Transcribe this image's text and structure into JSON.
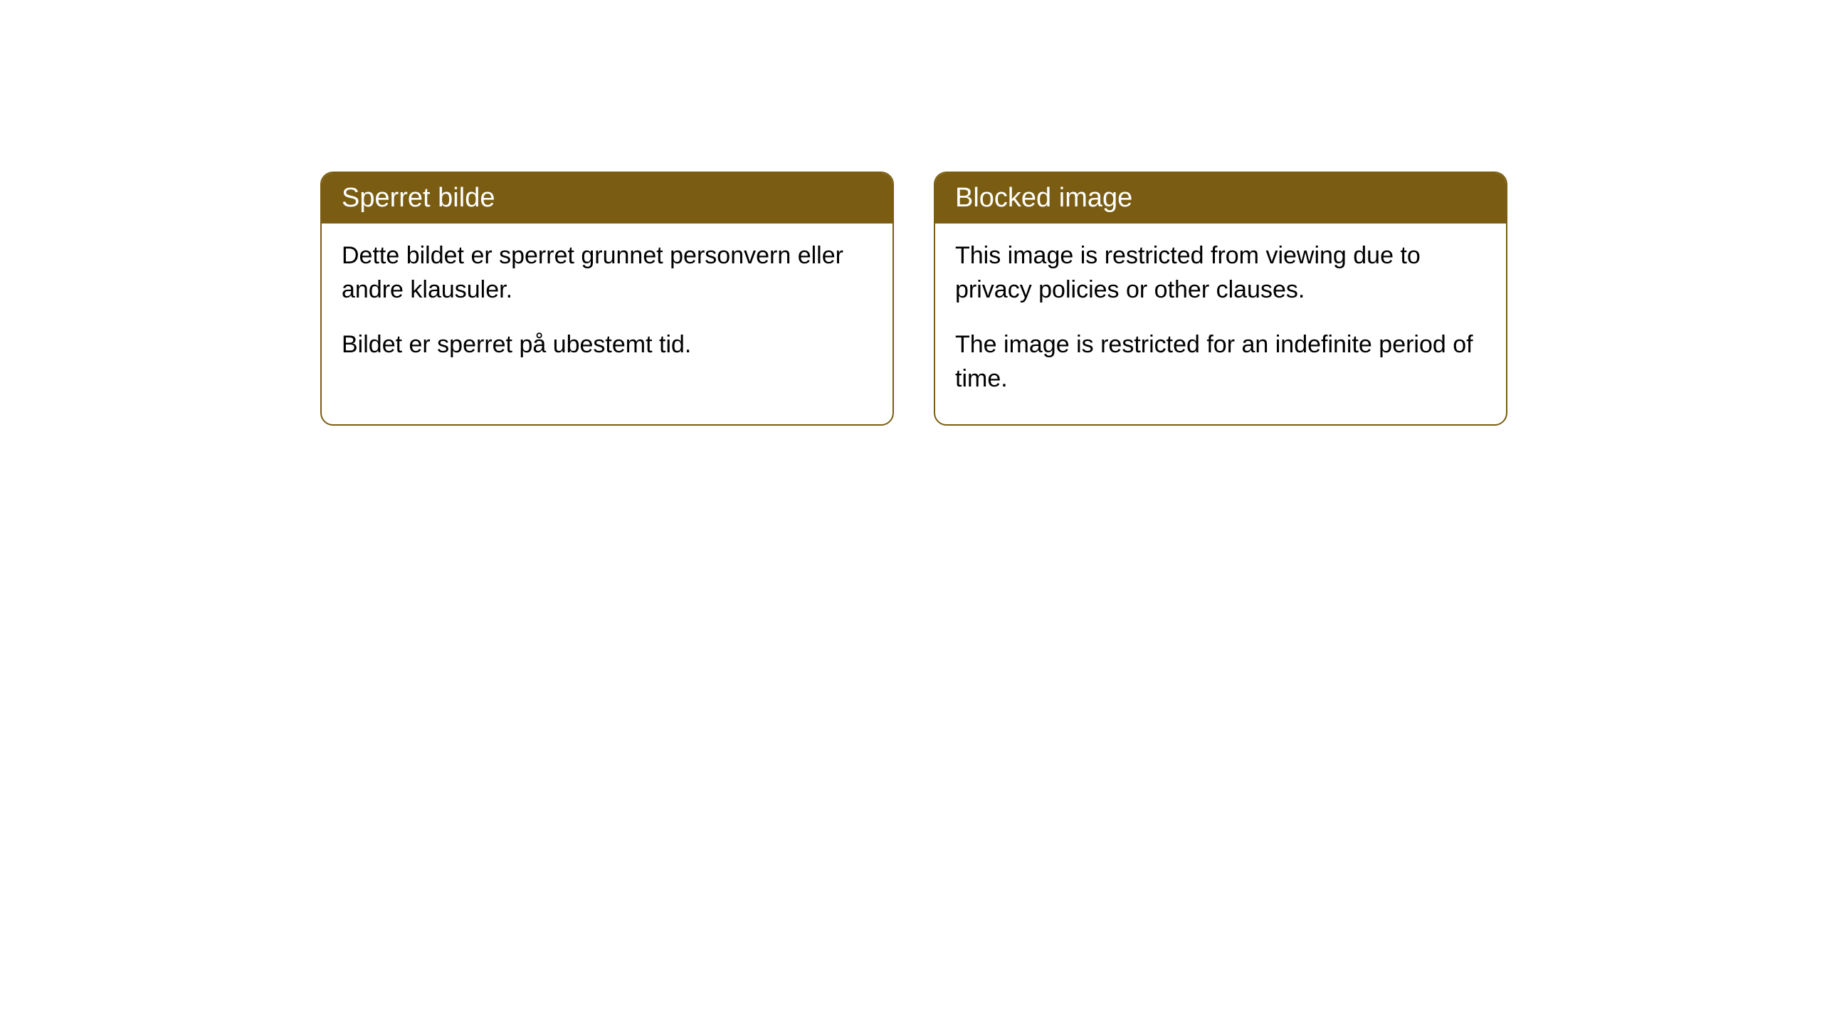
{
  "cards": [
    {
      "title": "Sperret bilde",
      "paragraph1": "Dette bildet er sperret grunnet personvern eller andre klausuler.",
      "paragraph2": "Bildet er sperret på ubestemt tid."
    },
    {
      "title": "Blocked image",
      "paragraph1": "This image is restricted from viewing due to privacy policies or other clauses.",
      "paragraph2": "The image is restricted for an indefinite period of time."
    }
  ],
  "style": {
    "header_bg_color": "#7a5d12",
    "header_text_color": "#ffffff",
    "border_color": "#7a5d12",
    "body_bg_color": "#ffffff",
    "body_text_color": "#000000",
    "border_radius": 18,
    "header_fontsize": 38,
    "body_fontsize": 34
  }
}
